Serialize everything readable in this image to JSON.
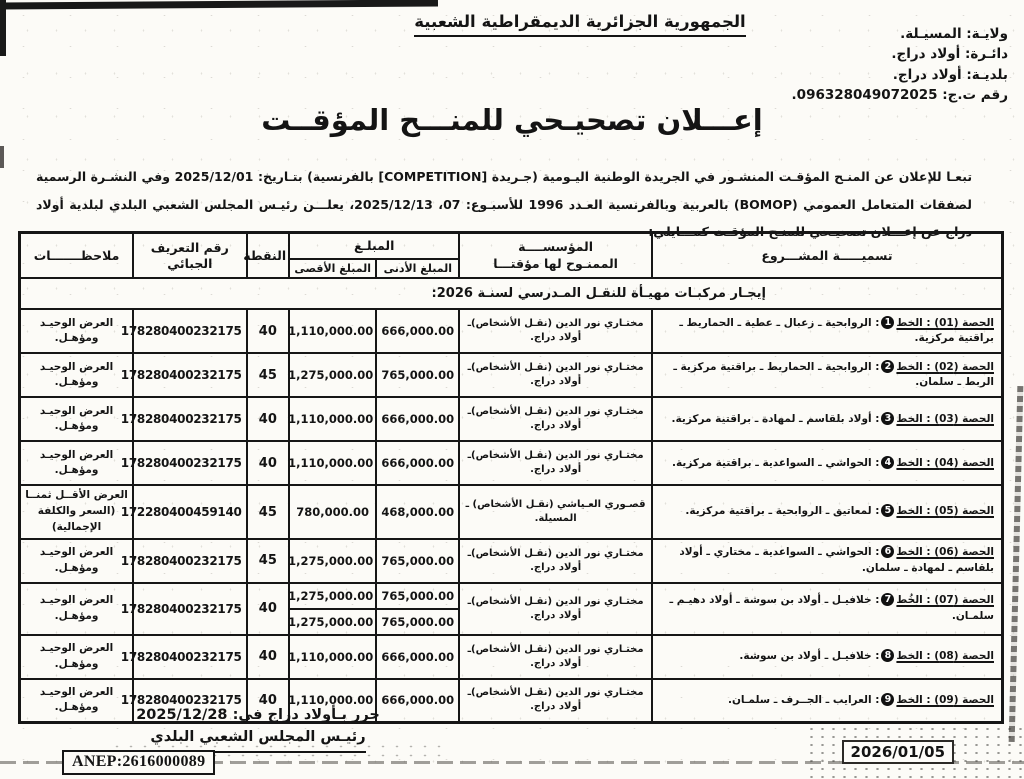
{
  "header": {
    "republic_title": "الجمهورية الجزائرية الديمقراطية الشعبية",
    "wilaya": "ولايـة: المسيـلة.",
    "daira": "دائـرة: أولاد دراج.",
    "commune": "بلديـة: أولاد دراج.",
    "registry_number": "رقم ت.ج: 096328049072025."
  },
  "title": "إعـــلان تصحيـحي للمنـــح المؤقــت",
  "intro": "تبعـا للإعلان عن المنـح المؤقـت المنشـور في الجريدة الوطنية اليـومية (جـريدة [COMPETITION] بالفرنسية) بتـاريخ: 2025/12/01 وفي النشـرة الرسمية لصفقات المتعامل العمومي (BOMOP) بالعربية وبالفرنسية العـدد 1996 للأسبـوع: 07، 2025/12/13، يعلـــن رئيـس المجلس الشعبي البلدي لبلدية أولاد دراج عن إعـــلان تصحيـحي للمنـح المؤقـت كمـــايلي:",
  "table": {
    "headers": {
      "project": "تسميـــــة المشـــروع",
      "institution_line1": "المؤسســــة",
      "institution_line2": "الممنـوح لها مؤقتـــا",
      "amount_group": "المبلـغ",
      "amount_min": "المبلغ الأدنى",
      "amount_max": "المبلغ الأقصى",
      "points": "النقطة",
      "tax_id": "رقم التعريف الجبائي",
      "remarks": "ملاحظـــــــات"
    },
    "section_title": "إيجـار مركبـات مهيـأة للنقـل المـدرسي لسنـة 2026:",
    "rows": [
      {
        "lot": "الحصة (01) : الخط",
        "line_no": "1",
        "route": ": الروابحية ـ زعبال ـ عطية ـ الحماريط ـ براقتية مركزية.",
        "institution": "مختـاري نور الدين (نقـل الأشخاص)ـ أولاد دراج.",
        "min": [
          "666,000.00"
        ],
        "max": [
          "1,110,000.00"
        ],
        "points": "40",
        "tax_id": "178280400232175",
        "remarks": "العرض الوحيـد ومؤهـل."
      },
      {
        "lot": "الحصة (02) : الخط",
        "line_no": "2",
        "route": ": الروابحية ـ الحماريط ـ براقتية مركزية ـ الربط ـ سلمان.",
        "institution": "مختـاري نور الدين (نقـل الأشخاص)ـ أولاد دراج.",
        "min": [
          "765,000.00"
        ],
        "max": [
          "1,275,000.00"
        ],
        "points": "45",
        "tax_id": "178280400232175",
        "remarks": "العرض الوحيـد ومؤهـل."
      },
      {
        "lot": "الحصة (03) : الخط",
        "line_no": "3",
        "route": ": أولاد بلقاسم ـ لمهادة ـ براقتية مركزية.",
        "institution": "مختـاري نور الدين (نقـل الأشخاص)ـ أولاد دراج.",
        "min": [
          "666,000.00"
        ],
        "max": [
          "1,110,000.00"
        ],
        "points": "40",
        "tax_id": "178280400232175",
        "remarks": "العرض الوحيـد ومؤهـل."
      },
      {
        "lot": "الحصة (04) : الخط",
        "line_no": "4",
        "route": ": الحواشي ـ السواعدية ـ براقتية مركزية.",
        "institution": "مختـاري نور الدين (نقـل الأشخاص)ـ أولاد دراج.",
        "min": [
          "666,000.00"
        ],
        "max": [
          "1,110,000.00"
        ],
        "points": "40",
        "tax_id": "178280400232175",
        "remarks": "العرض الوحيـد ومؤهـل."
      },
      {
        "lot": "الحصة (05) : الخط",
        "line_no": "5",
        "route": ": لمعاتيق ـ الروابحية ـ براقتية مركزية.",
        "institution": "قصـوري العـياشي (نقـل الأشخاص) ـ المسيلة.",
        "min": [
          "468,000.00"
        ],
        "max": [
          "780,000.00"
        ],
        "points": "45",
        "tax_id": "172280400459140",
        "remarks": "العرض الأقــل ثمنــا (السعر والكلفة الإجمالية)"
      },
      {
        "lot": "الحصة (06) : الخط",
        "line_no": "6",
        "route": ": الحواشي ـ السواعدية ـ مختاري ـ أولاد بلقاسم ـ لمهادة ـ سلمان.",
        "institution": "مختـاري نور الدين (نقـل الأشخاص)ـ أولاد دراج.",
        "min": [
          "765,000.00"
        ],
        "max": [
          "1,275,000.00"
        ],
        "points": "45",
        "tax_id": "178280400232175",
        "remarks": "العرض الوحيـد ومؤهـل."
      },
      {
        "lot": "الحصة (07) : الخُط",
        "line_no": "7",
        "route": ": خلافيـل ـ أولاد بن سوشة ـ أولاد دهيـم ـ سلمـان.",
        "institution": "مختـاري نور الدين (نقـل الأشخاص)ـ أولاد دراج.",
        "min": [
          "765,000.00",
          "765,000.00"
        ],
        "max": [
          "1,275,000.00",
          "1,275,000.00"
        ],
        "points": "40",
        "tax_id": "178280400232175",
        "remarks": "العرض الوحيـد ومؤهـل."
      },
      {
        "lot": "الحصة (08) : الخط",
        "line_no": "8",
        "route": ": خلافيـل ـ أولاد بن سوشة.",
        "institution": "مختـاري نور الدين (نقـل الأشخاص)ـ أولاد دراج.",
        "min": [
          "666,000.00"
        ],
        "max": [
          "1,110,000.00"
        ],
        "points": "40",
        "tax_id": "178280400232175",
        "remarks": "العرض الوحيـد ومؤهـل."
      },
      {
        "lot": "الحصة (09) : الخط",
        "line_no": "9",
        "route": ": العرايب ـ الجــرف ـ سلمـان.",
        "institution": "مختـاري نور الدين (نقـل الأشخاص)ـ أولاد دراج.",
        "min": [
          "666,000.00"
        ],
        "max": [
          "1,110,000.00"
        ],
        "points": "40",
        "tax_id": "178280400232175",
        "remarks": "العرض الوحيـد ومؤهـل."
      }
    ]
  },
  "footer": {
    "drafted_at": "حرر بـأولاد دراج في: 2025/12/28",
    "signatory": "رئيـس المجلس الشعبي البلدي",
    "anep": "ANEP:2616000089",
    "press_date": "2026/01/05"
  }
}
